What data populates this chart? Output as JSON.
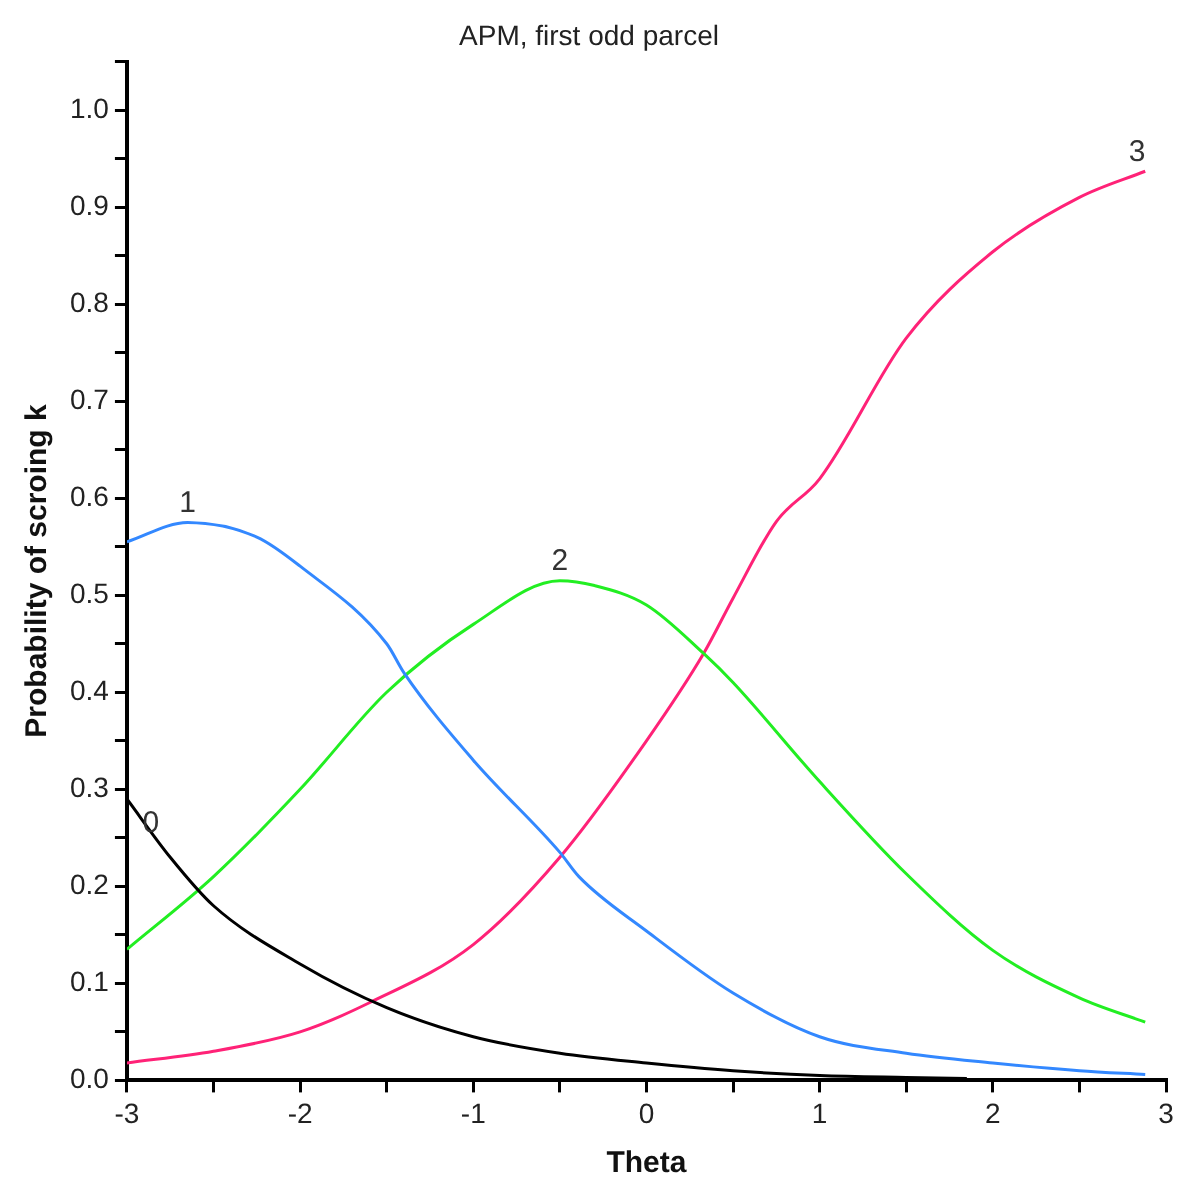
{
  "chart_data": {
    "type": "line",
    "title": "APM, first odd parcel",
    "xlabel": "Theta",
    "ylabel": "Probability of scroing k",
    "xlim": [
      -3,
      3
    ],
    "ylim": [
      0,
      1.05
    ],
    "xticks": [
      -3,
      {
        "value": -2.5,
        "label": null
      },
      -2,
      {
        "value": -1.5,
        "label": null
      },
      -1,
      {
        "value": -0.5,
        "label": null
      },
      0,
      {
        "value": 0.5,
        "label": null
      },
      1,
      {
        "value": 1.5,
        "label": null
      },
      2,
      {
        "value": 2.5,
        "label": null
      },
      3
    ],
    "yticks": [
      {
        "value": 0,
        "label": "0.0"
      },
      {
        "value": 0.05,
        "label": null
      },
      0.1,
      {
        "value": 0.15,
        "label": null
      },
      0.2,
      {
        "value": 0.25,
        "label": null
      },
      0.3,
      {
        "value": 0.35,
        "label": null
      },
      0.4,
      {
        "value": 0.45,
        "label": null
      },
      0.5,
      {
        "value": 0.55,
        "label": null
      },
      0.6,
      {
        "value": 0.65,
        "label": null
      },
      0.7,
      {
        "value": 0.75,
        "label": null
      },
      0.8,
      {
        "value": 0.85,
        "label": null
      },
      0.9,
      {
        "value": 0.95,
        "label": null
      },
      {
        "value": 1,
        "label": "1.0"
      },
      {
        "value": 1.05,
        "label": null
      }
    ],
    "grid": false,
    "legend": false,
    "marker": "none",
    "line_style": "solid",
    "series": [
      {
        "name": "0",
        "color": "#000000",
        "x": [
          -3,
          -2.75,
          -2.5,
          -2,
          -1.5,
          -1,
          -0.5,
          0,
          0.5,
          1,
          1.5,
          1.85
        ],
        "values": [
          0.29,
          0.23,
          0.18,
          0.12,
          0.075,
          0.045,
          0.028,
          0.018,
          0.01,
          0.005,
          0.003,
          0.002
        ]
      },
      {
        "name": "1",
        "color": "#3388ff",
        "x": [
          -3,
          -2.65,
          -2.25,
          -2,
          -1.5,
          -1.4,
          -1,
          -0.5,
          -0.39,
          0,
          0.5,
          1,
          1.5,
          2,
          2.5,
          2.88
        ],
        "values": [
          0.555,
          0.575,
          0.56,
          0.53,
          0.45,
          0.42,
          0.33,
          0.235,
          0.21,
          0.154,
          0.09,
          0.045,
          0.028,
          0.018,
          0.01,
          0.006
        ]
      },
      {
        "name": "2",
        "color": "#22ee22",
        "x": [
          -3,
          -2.5,
          -2,
          -1.5,
          -1,
          -0.5,
          -0.3,
          0,
          0.33,
          0.5,
          1,
          1.5,
          2,
          2.5,
          2.88
        ],
        "values": [
          0.135,
          0.21,
          0.3,
          0.4,
          0.47,
          0.515,
          0.51,
          0.49,
          0.44,
          0.41,
          0.308,
          0.213,
          0.134,
          0.085,
          0.06
        ]
      },
      {
        "name": "3",
        "color": "#ff2277",
        "x": [
          -3,
          -2.5,
          -2,
          -1.6,
          -1,
          -0.5,
          0,
          0.33,
          0.5,
          0.75,
          1,
          1.5,
          2,
          2.5,
          2.88
        ],
        "values": [
          0.018,
          0.03,
          0.05,
          0.08,
          0.14,
          0.23,
          0.35,
          0.44,
          0.497,
          0.576,
          0.62,
          0.765,
          0.854,
          0.91,
          0.937
        ]
      }
    ]
  }
}
